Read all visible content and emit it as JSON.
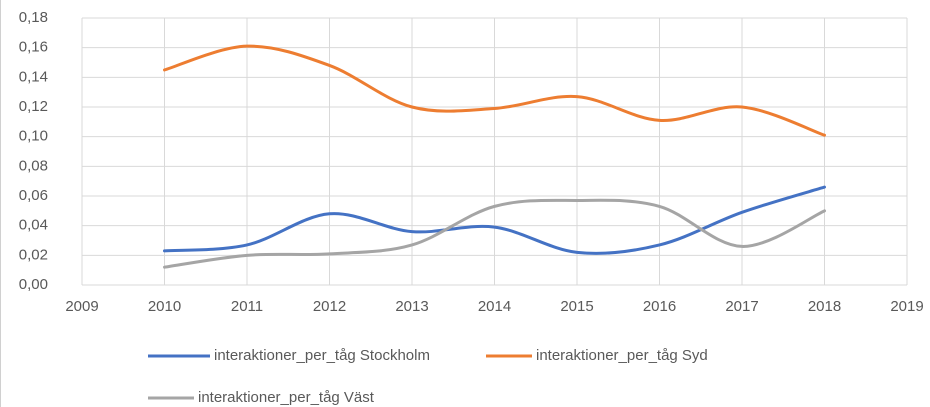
{
  "chart_data": {
    "type": "line",
    "x": [
      2010,
      2011,
      2012,
      2013,
      2014,
      2015,
      2016,
      2017,
      2018
    ],
    "series": [
      {
        "name": "interaktioner_per_tåg Stockholm",
        "color": "#4472c4",
        "values": [
          0.023,
          0.027,
          0.048,
          0.036,
          0.039,
          0.022,
          0.027,
          0.049,
          0.066
        ]
      },
      {
        "name": "interaktioner_per_tåg Syd",
        "color": "#ed7d31",
        "values": [
          0.145,
          0.161,
          0.148,
          0.12,
          0.119,
          0.127,
          0.111,
          0.12,
          0.101
        ]
      },
      {
        "name": "interaktioner_per_tåg Väst",
        "color": "#a5a5a5",
        "values": [
          0.012,
          0.02,
          0.021,
          0.027,
          0.053,
          0.057,
          0.053,
          0.026,
          0.05
        ]
      }
    ],
    "xlim": [
      2009,
      2019
    ],
    "xticks": [
      2009,
      2010,
      2011,
      2012,
      2013,
      2014,
      2015,
      2016,
      2017,
      2018,
      2019
    ],
    "ylim": [
      0,
      0.18
    ],
    "yticks": [
      {
        "value": 0,
        "label": "0,00"
      },
      {
        "value": 0.02,
        "label": "0,02"
      },
      {
        "value": 0.04,
        "label": "0,04"
      },
      {
        "value": 0.06,
        "label": "0,06"
      },
      {
        "value": 0.08,
        "label": "0,08"
      },
      {
        "value": 0.1,
        "label": "0,10"
      },
      {
        "value": 0.12,
        "label": "0,12"
      },
      {
        "value": 0.14,
        "label": "0,14"
      },
      {
        "value": 0.16,
        "label": "0,16"
      },
      {
        "value": 0.18,
        "label": "0,18"
      }
    ],
    "grid": true,
    "smooth": true,
    "legend": "bottom-left"
  }
}
